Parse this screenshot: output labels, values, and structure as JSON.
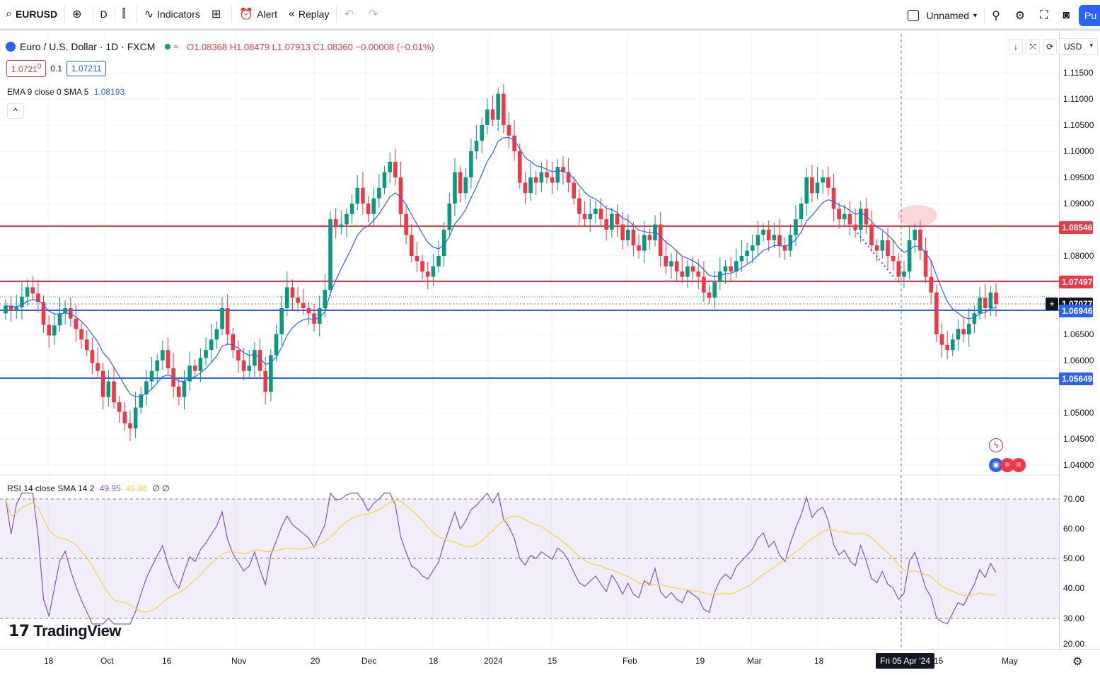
{
  "toolbar": {
    "symbol": "EURUSD",
    "interval": "D",
    "indicators_label": "Indicators",
    "alert_label": "Alert",
    "replay_label": "Replay",
    "layout_name": "Unnamed",
    "publish_label": "Pu",
    "icons": [
      "search-icon",
      "add-symbol-icon",
      "bar-style-icon",
      "indicators-icon",
      "templates-icon",
      "alert-icon",
      "replay-icon",
      "undo-icon",
      "redo-icon",
      "quick-search-icon",
      "settings-icon",
      "fullscreen-icon",
      "snapshot-icon"
    ]
  },
  "legend": {
    "title": "Euro / U.S. Dollar · 1D · FXCM",
    "ohlc": "O1.08368 H1.08479 L1.07913 C1.08360 −0.00008 (−0.01%)",
    "sell_price": "1.0721",
    "sell_price_small": "0",
    "spread": "0.1",
    "buy_price": "1.07211",
    "indicator": "EMA 9 close 0 SMA 5",
    "indicator_value": "1.08193",
    "rsi": "RSI 14 close SMA 14 2",
    "rsi_value": "49.95",
    "rsi_sma_value": "45.86",
    "rsi_extra": "∅ ∅"
  },
  "logo": "TradingView",
  "currency": "USD",
  "price_scale": {
    "ticks": [
      "1.11500",
      "1.11000",
      "1.10500",
      "1.10000",
      "1.09500",
      "1.09000",
      "1.08000",
      "1.06500",
      "1.06000",
      "1.05000",
      "1.04500",
      "1.04000"
    ],
    "tags": [
      {
        "label": "1.08546",
        "color": "#f23645"
      },
      {
        "label": "1.07497",
        "color": "#f23645"
      },
      {
        "label": "1.07077",
        "color": "#131722"
      },
      {
        "label": "1.06946",
        "color": "#2962ff"
      },
      {
        "label": "1.05649",
        "color": "#2962ff"
      }
    ]
  },
  "rsi_scale": {
    "ticks": [
      "70.00",
      "60.00",
      "50.00",
      "40.00",
      "30.00",
      "20.00"
    ]
  },
  "time_axis": {
    "ticks": [
      "18",
      "Oct",
      "16",
      "Nov",
      "20",
      "Dec",
      "18",
      "2024",
      "15",
      "Feb",
      "19",
      "Mar",
      "18",
      "15",
      "May"
    ],
    "cursor_label": "Fri 05 Apr '24"
  },
  "chart_data": {
    "type": "candlestick",
    "symbol": "EURUSD",
    "interval": "1D",
    "horizontal_levels": [
      {
        "price": 1.08546,
        "color": "#f23645"
      },
      {
        "price": 1.07497,
        "color": "#f23645"
      },
      {
        "price": 1.06946,
        "color": "#2962ff"
      },
      {
        "price": 1.05649,
        "color": "#2962ff"
      }
    ],
    "closes": [
      1.0705,
      1.0695,
      1.0702,
      1.0722,
      1.074,
      1.0728,
      1.0712,
      1.0668,
      1.0648,
      1.0667,
      1.069,
      1.07,
      1.068,
      1.066,
      1.064,
      1.062,
      1.0595,
      1.058,
      1.053,
      1.056,
      1.052,
      1.0502,
      1.048,
      1.047,
      1.051,
      1.0535,
      1.056,
      1.058,
      1.06,
      1.062,
      1.0585,
      1.055,
      1.053,
      1.056,
      1.059,
      1.058,
      1.0605,
      1.062,
      1.064,
      1.066,
      1.07,
      1.065,
      1.062,
      1.06,
      1.058,
      1.059,
      1.062,
      1.058,
      1.054,
      1.061,
      1.065,
      1.07,
      1.074,
      1.072,
      1.071,
      1.07,
      1.069,
      1.067,
      1.07,
      1.0735,
      1.087,
      1.0855,
      1.086,
      1.088,
      1.09,
      1.093,
      1.09,
      1.088,
      1.091,
      1.093,
      1.096,
      1.098,
      1.095,
      1.088,
      1.084,
      1.08,
      1.079,
      1.077,
      1.076,
      1.078,
      1.08,
      1.085,
      1.09,
      1.096,
      1.092,
      1.095,
      1.1,
      1.102,
      1.105,
      1.108,
      1.106,
      1.111,
      1.105,
      1.103,
      1.1,
      1.094,
      1.092,
      1.095,
      1.094,
      1.096,
      1.095,
      1.094,
      1.097,
      1.096,
      1.094,
      1.091,
      1.088,
      1.087,
      1.088,
      1.089,
      1.087,
      1.085,
      1.088,
      1.086,
      1.083,
      1.085,
      1.082,
      1.081,
      1.084,
      1.083,
      1.086,
      1.08,
      1.078,
      1.079,
      1.077,
      1.076,
      1.078,
      1.077,
      1.076,
      1.073,
      1.072,
      1.075,
      1.077,
      1.078,
      1.077,
      1.079,
      1.08,
      1.081,
      1.082,
      1.084,
      1.085,
      1.083,
      1.084,
      1.082,
      1.081,
      1.084,
      1.087,
      1.09,
      1.095,
      1.092,
      1.094,
      1.095,
      1.093,
      1.089,
      1.087,
      1.088,
      1.086,
      1.085,
      1.089,
      1.086,
      1.082,
      1.081,
      1.083,
      1.08,
      1.079,
      1.076,
      1.077,
      1.083,
      1.085,
      1.081,
      1.076,
      1.073,
      1.065,
      1.063,
      1.062,
      1.064,
      1.066,
      1.065,
      1.067,
      1.069,
      1.072,
      1.07,
      1.073,
      1.0708
    ]
  }
}
